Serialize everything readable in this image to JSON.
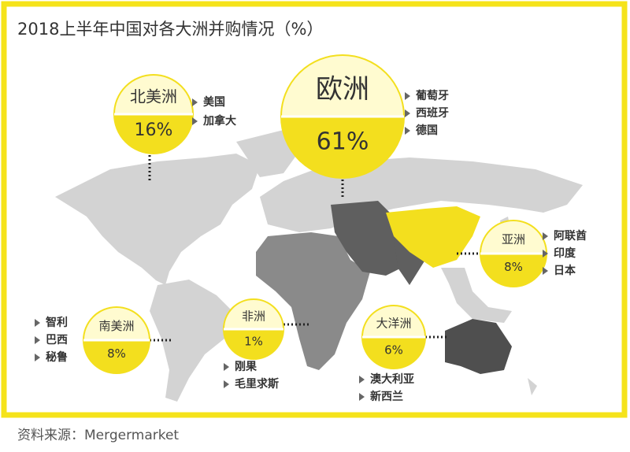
{
  "title": "2018上半年中国对各大洲并购情况（%）",
  "regions": [
    {
      "name": "北美洲",
      "percent": "16%",
      "countries": [
        "美国",
        "加拿大"
      ]
    },
    {
      "name": "欧洲",
      "percent": "61%",
      "countries": [
        "葡萄牙",
        "西班牙",
        "德国"
      ]
    },
    {
      "name": "亚洲",
      "percent": "8%",
      "countries": [
        "阿联酋",
        "印度",
        "日本"
      ]
    },
    {
      "name": "南美洲",
      "percent": "8%",
      "countries": [
        "智利",
        "巴西",
        "秘鲁"
      ]
    },
    {
      "name": "非洲",
      "percent": "1%",
      "countries": [
        "刚果",
        "毛里求斯"
      ]
    },
    {
      "name": "大洋洲",
      "percent": "6%",
      "countries": [
        "澳大利亚",
        "新西兰"
      ]
    }
  ],
  "source": "资料来源：Mergermarket"
}
